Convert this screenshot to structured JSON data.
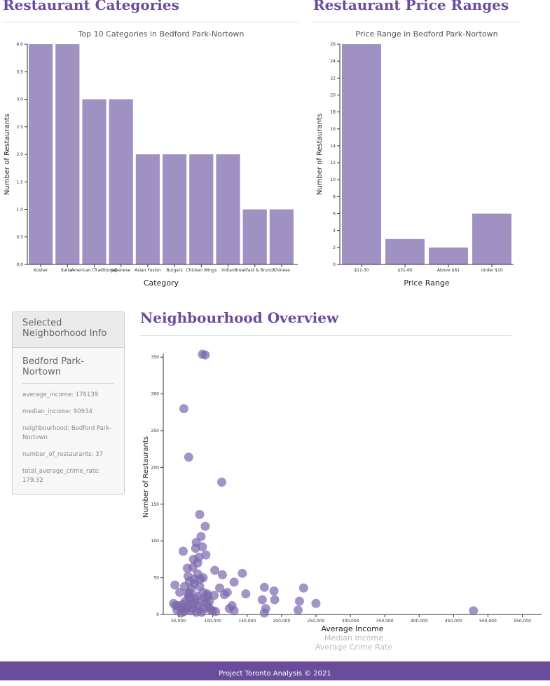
{
  "sections": {
    "categories_title": "Restaurant Categories",
    "prices_title": "Restaurant Price Ranges",
    "overview_title": "Neighbourhood Overview"
  },
  "info_panel": {
    "header": "Selected Neighborhood Info",
    "name": "Bedford Park-Nortown",
    "rows": [
      "average_income: 176139",
      "median_income: 90934",
      "neighbourhood: Bedford Park-Nortown",
      "number_of_restaurants: 37",
      "total_average_crime_rate: 179.32"
    ]
  },
  "x_axis_options": {
    "selected": "Average Income",
    "other1": "Median Income",
    "other2": "Average Crime Rate"
  },
  "footer": {
    "text": "Project Toronto Analysis © 2021"
  },
  "colors": {
    "accent": "#6a4c9c",
    "bar": "#9f92c2",
    "point": "#7a68ad"
  },
  "chart_data": [
    {
      "type": "bar",
      "title": "Top 10 Categories in Bedford Park-Nortown",
      "xlabel": "Category",
      "ylabel": "Number of Restaurants",
      "categories": [
        "Kosher",
        "Italian",
        "American (Traditional)",
        "Japanese",
        "Asian Fusion",
        "Burgers",
        "Chicken Wings",
        "Indian",
        "Breakfast & Brunch",
        "Chinese"
      ],
      "values": [
        4,
        4,
        3,
        3,
        2,
        2,
        2,
        2,
        1,
        1
      ],
      "ylim": [
        0,
        4
      ],
      "yticks": [
        "0.0",
        "0.5",
        "1.0",
        "1.5",
        "2.0",
        "2.5",
        "3.0",
        "3.5",
        "4.0"
      ]
    },
    {
      "type": "bar",
      "title": "Price Range in Bedford Park-Nortown",
      "xlabel": "Price Range",
      "ylabel": "Number of Restaurants",
      "categories": [
        "$11-30",
        "$31-60",
        "Above $61",
        "Under $10"
      ],
      "values": [
        26,
        3,
        2,
        6
      ],
      "ylim": [
        0,
        26
      ],
      "yticks": [
        "0",
        "2",
        "4",
        "6",
        "8",
        "10",
        "12",
        "14",
        "16",
        "18",
        "20",
        "22",
        "24",
        "26"
      ]
    },
    {
      "type": "scatter",
      "xlabel": "Average Income",
      "ylabel": "Number of Restaurants",
      "xlim": [
        28000,
        578000
      ],
      "ylim": [
        0,
        355
      ],
      "xticks": [
        50000,
        100000,
        150000,
        200000,
        250000,
        300000,
        350000,
        400000,
        450000,
        500000,
        550000
      ],
      "xtick_labels": [
        "50,000",
        "100,000",
        "150,000",
        "200,000",
        "250,000",
        "300,000",
        "350,000",
        "400,000",
        "450,000",
        "500,000",
        "550,000"
      ],
      "yticks": [
        0,
        50,
        100,
        150,
        200,
        250,
        300,
        350
      ],
      "points": [
        [
          85000,
          354
        ],
        [
          89000,
          353
        ],
        [
          58000,
          280
        ],
        [
          65000,
          214
        ],
        [
          113000,
          180
        ],
        [
          81000,
          136
        ],
        [
          89000,
          120
        ],
        [
          83000,
          106
        ],
        [
          76000,
          98
        ],
        [
          57000,
          86
        ],
        [
          85000,
          92
        ],
        [
          90000,
          81
        ],
        [
          75000,
          90
        ],
        [
          80000,
          78
        ],
        [
          72000,
          75
        ],
        [
          78000,
          70
        ],
        [
          71000,
          64
        ],
        [
          63000,
          63
        ],
        [
          103000,
          60
        ],
        [
          143000,
          56
        ],
        [
          114000,
          54
        ],
        [
          131000,
          44
        ],
        [
          175000,
          37
        ],
        [
          189000,
          32
        ],
        [
          232000,
          36
        ],
        [
          45000,
          40
        ],
        [
          66000,
          45
        ],
        [
          73000,
          42
        ],
        [
          82000,
          48
        ],
        [
          86000,
          50
        ],
        [
          59000,
          38
        ],
        [
          69000,
          35
        ],
        [
          110000,
          36
        ],
        [
          121000,
          30
        ],
        [
          148000,
          28
        ],
        [
          52000,
          30
        ],
        [
          64000,
          28
        ],
        [
          77000,
          25
        ],
        [
          92000,
          28
        ],
        [
          102000,
          26
        ],
        [
          172000,
          20
        ],
        [
          190000,
          20
        ],
        [
          226000,
          18
        ],
        [
          250000,
          15
        ],
        [
          117000,
          27
        ],
        [
          43000,
          15
        ],
        [
          50000,
          12
        ],
        [
          55000,
          8
        ],
        [
          60000,
          18
        ],
        [
          62000,
          10
        ],
        [
          67000,
          20
        ],
        [
          70000,
          14
        ],
        [
          74000,
          22
        ],
        [
          79000,
          12
        ],
        [
          83000,
          18
        ],
        [
          87000,
          8
        ],
        [
          91000,
          15
        ],
        [
          94000,
          10
        ],
        [
          97000,
          6
        ],
        [
          100000,
          5
        ],
        [
          68000,
          5
        ],
        [
          71000,
          8
        ],
        [
          76000,
          3
        ],
        [
          80000,
          6
        ],
        [
          84000,
          3
        ],
        [
          58000,
          4
        ],
        [
          54000,
          2
        ],
        [
          48000,
          6
        ],
        [
          46000,
          12
        ],
        [
          65000,
          24
        ],
        [
          95000,
          18
        ],
        [
          88000,
          22
        ],
        [
          73000,
          16
        ],
        [
          61000,
          7
        ],
        [
          57000,
          14
        ],
        [
          104000,
          4
        ],
        [
          124000,
          8
        ],
        [
          128000,
          12
        ],
        [
          131000,
          5
        ],
        [
          224000,
          6
        ],
        [
          175000,
          2
        ],
        [
          177000,
          8
        ],
        [
          479000,
          5
        ],
        [
          86000,
          30
        ],
        [
          66000,
          30
        ],
        [
          93000,
          25
        ],
        [
          81000,
          38
        ],
        [
          73000,
          48
        ],
        [
          64000,
          52
        ],
        [
          78000,
          55
        ]
      ]
    }
  ]
}
